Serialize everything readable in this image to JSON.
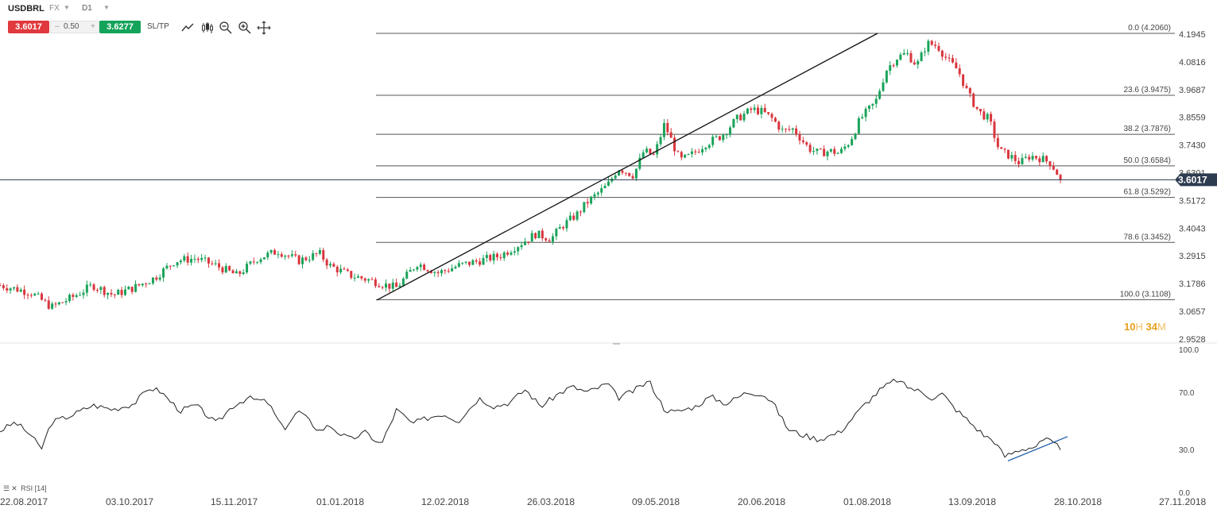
{
  "header": {
    "symbol": "USDBRL",
    "market": "FX",
    "timeframe": "D1",
    "sell_price": "3.6017",
    "volume": "0.50",
    "qty_minus": "–",
    "qty_plus": "+",
    "buy_price": "3.6277",
    "sltp_label": "SL/TP",
    "tools": [
      "trendline-icon",
      "candles-icon",
      "zoom-out-icon",
      "zoom-in-icon",
      "crosshair-icon"
    ]
  },
  "countdown": {
    "hours": "10",
    "h_unit": "H",
    "minutes": "34",
    "m_unit": "M"
  },
  "chart_data": {
    "type": "candlestick",
    "symbol": "USDBRL",
    "timeframe": "D1",
    "current_price": 3.6017,
    "current_price_label": "3.6017",
    "price_axis": [
      "4.1945",
      "4.0816",
      "3.9687",
      "3.8559",
      "3.7430",
      "3.6301",
      "3.5172",
      "3.4043",
      "3.2915",
      "3.1786",
      "3.0657",
      "2.9528"
    ],
    "ylim": [
      2.9528,
      4.1945
    ],
    "date_axis": [
      "22.08.2017",
      "03.10.2017",
      "15.11.2017",
      "01.01.2018",
      "12.02.2018",
      "26.03.2018",
      "09.05.2018",
      "20.06.2018",
      "01.08.2018",
      "13.09.2018",
      "28.10.2018",
      "27.11.2018"
    ],
    "fibonacci": [
      {
        "label": "0.0 (4.2060)",
        "price": 4.206
      },
      {
        "label": "23.6 (3.9475)",
        "price": 3.9475
      },
      {
        "label": "38.2 (3.7876)",
        "price": 3.7876
      },
      {
        "label": "50.0 (3.6584)",
        "price": 3.6584
      },
      {
        "label": "61.8 (3.5292)",
        "price": 3.5292
      },
      {
        "label": "78.6 (3.3452)",
        "price": 3.3452
      },
      {
        "label": "100.0 (3.1108)",
        "price": 3.1108
      }
    ],
    "trendline": {
      "from": {
        "date": "01.01.2018",
        "price": 3.1108
      },
      "to": {
        "date": "10.08.2018",
        "price": 4.206
      }
    },
    "close_path": [
      [
        0,
        3.17
      ],
      [
        12,
        3.14
      ],
      [
        20,
        3.08
      ],
      [
        28,
        3.12
      ],
      [
        36,
        3.17
      ],
      [
        44,
        3.13
      ],
      [
        52,
        3.16
      ],
      [
        60,
        3.2
      ],
      [
        68,
        3.27
      ],
      [
        76,
        3.28
      ],
      [
        84,
        3.25
      ],
      [
        92,
        3.21
      ],
      [
        100,
        3.28
      ],
      [
        108,
        3.31
      ],
      [
        116,
        3.27
      ],
      [
        124,
        3.3
      ],
      [
        128,
        3.25
      ],
      [
        136,
        3.21
      ],
      [
        144,
        3.19
      ],
      [
        150,
        3.17
      ],
      [
        154,
        3.16
      ],
      [
        162,
        3.26
      ],
      [
        170,
        3.22
      ],
      [
        178,
        3.25
      ],
      [
        186,
        3.27
      ],
      [
        194,
        3.29
      ],
      [
        202,
        3.34
      ],
      [
        208,
        3.38
      ],
      [
        214,
        3.36
      ],
      [
        218,
        3.41
      ],
      [
        224,
        3.46
      ],
      [
        228,
        3.51
      ],
      [
        236,
        3.58
      ],
      [
        240,
        3.65
      ],
      [
        246,
        3.62
      ],
      [
        250,
        3.72
      ],
      [
        254,
        3.7
      ],
      [
        258,
        3.83
      ],
      [
        264,
        3.68
      ],
      [
        268,
        3.7
      ],
      [
        274,
        3.75
      ],
      [
        280,
        3.78
      ],
      [
        286,
        3.85
      ],
      [
        292,
        3.89
      ],
      [
        296,
        3.88
      ],
      [
        300,
        3.85
      ],
      [
        304,
        3.8
      ],
      [
        308,
        3.81
      ],
      [
        314,
        3.73
      ],
      [
        318,
        3.71
      ],
      [
        322,
        3.72
      ],
      [
        326,
        3.71
      ],
      [
        330,
        3.76
      ],
      [
        334,
        3.85
      ],
      [
        340,
        3.92
      ],
      [
        344,
        4.05
      ],
      [
        348,
        4.1
      ],
      [
        352,
        4.12
      ],
      [
        356,
        4.07
      ],
      [
        360,
        4.16
      ],
      [
        364,
        4.15
      ],
      [
        368,
        4.09
      ],
      [
        372,
        4.05
      ],
      [
        376,
        3.95
      ],
      [
        380,
        3.88
      ],
      [
        384,
        3.85
      ],
      [
        388,
        3.72
      ],
      [
        392,
        3.7
      ],
      [
        396,
        3.67
      ],
      [
        400,
        3.7
      ],
      [
        404,
        3.69
      ],
      [
        408,
        3.67
      ],
      [
        412,
        3.6017
      ]
    ],
    "rsi": {
      "label": "RSI [14]",
      "axis": [
        "100.0",
        "70.0",
        "30.0",
        "0.0"
      ],
      "ylim": [
        0,
        100
      ],
      "values": [
        [
          0,
          43
        ],
        [
          6,
          49
        ],
        [
          12,
          40
        ],
        [
          16,
          30
        ],
        [
          20,
          49
        ],
        [
          28,
          54
        ],
        [
          36,
          61
        ],
        [
          44,
          58
        ],
        [
          52,
          62
        ],
        [
          58,
          73
        ],
        [
          62,
          71
        ],
        [
          70,
          57
        ],
        [
          76,
          61
        ],
        [
          84,
          48
        ],
        [
          90,
          60
        ],
        [
          96,
          66
        ],
        [
          104,
          63
        ],
        [
          110,
          44
        ],
        [
          116,
          57
        ],
        [
          124,
          43
        ],
        [
          128,
          47
        ],
        [
          132,
          41
        ],
        [
          136,
          37
        ],
        [
          142,
          42
        ],
        [
          148,
          33
        ],
        [
          154,
          58
        ],
        [
          160,
          48
        ],
        [
          166,
          52
        ],
        [
          172,
          55
        ],
        [
          178,
          50
        ],
        [
          186,
          66
        ],
        [
          192,
          60
        ],
        [
          198,
          63
        ],
        [
          204,
          72
        ],
        [
          210,
          60
        ],
        [
          216,
          68
        ],
        [
          222,
          74
        ],
        [
          228,
          70
        ],
        [
          236,
          76
        ],
        [
          240,
          66
        ],
        [
          246,
          71
        ],
        [
          252,
          78
        ],
        [
          258,
          58
        ],
        [
          262,
          56
        ],
        [
          270,
          60
        ],
        [
          276,
          67
        ],
        [
          282,
          62
        ],
        [
          290,
          70
        ],
        [
          296,
          69
        ],
        [
          300,
          63
        ],
        [
          306,
          44
        ],
        [
          312,
          40
        ],
        [
          318,
          37
        ],
        [
          326,
          42
        ],
        [
          330,
          50
        ],
        [
          336,
          62
        ],
        [
          342,
          72
        ],
        [
          348,
          79
        ],
        [
          352,
          74
        ],
        [
          358,
          70
        ],
        [
          362,
          66
        ],
        [
          366,
          69
        ],
        [
          370,
          60
        ],
        [
          376,
          50
        ],
        [
          382,
          40
        ],
        [
          386,
          36
        ],
        [
          390,
          25
        ],
        [
          396,
          30
        ],
        [
          402,
          32
        ],
        [
          406,
          37
        ],
        [
          412,
          31
        ]
      ],
      "trendline": {
        "from": {
          "date": "27.09.2018",
          "value": 22
        },
        "to": {
          "date": "24.10.2018",
          "value": 39
        }
      }
    },
    "grid": false
  }
}
